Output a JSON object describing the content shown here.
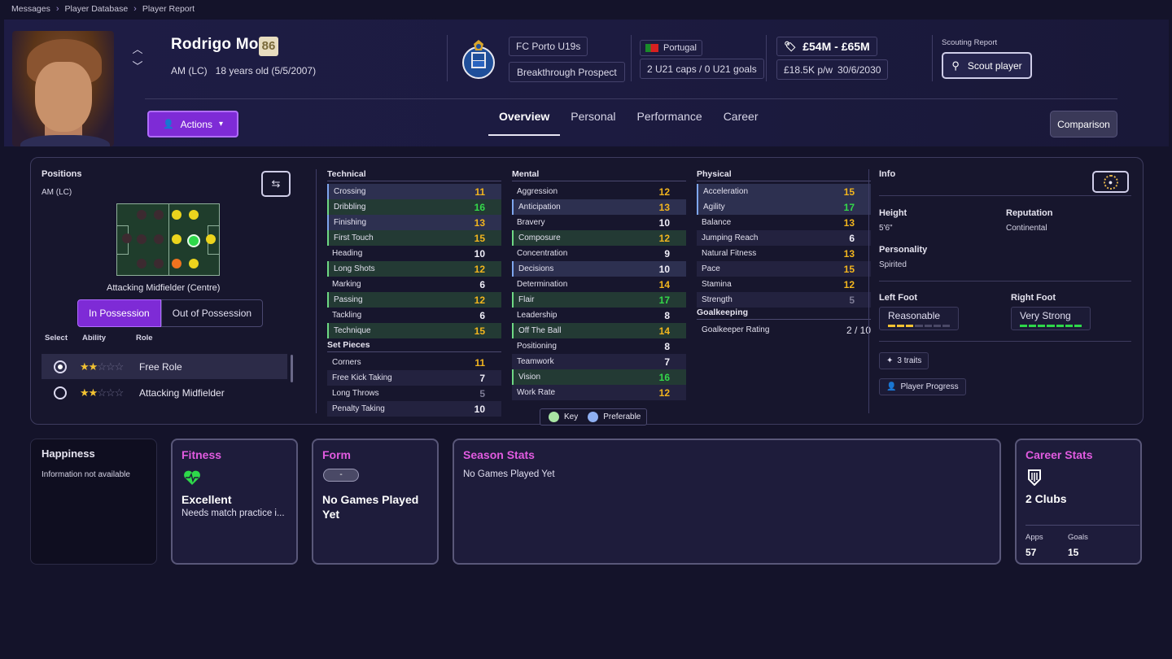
{
  "breadcrumb": [
    "Messages",
    "Player Database",
    "Player Report"
  ],
  "player": {
    "name": "Rodrigo Mora",
    "rating": "86",
    "position": "AM (LC)",
    "age": "18 years old (5/5/2007)",
    "club": "FC Porto U19s",
    "status": "Breakthrough Prospect",
    "nation": "Portugal",
    "caps": "2 U21 caps / 0 U21 goals",
    "value": "£54M - £65M",
    "wage": "£18.5K p/w",
    "contract": "30/6/2030"
  },
  "scouting": {
    "label": "Scouting Report",
    "button": "Scout player"
  },
  "actions_label": "Actions",
  "tabs": [
    "Overview",
    "Personal",
    "Performance",
    "Career"
  ],
  "comparison_label": "Comparison",
  "positions": {
    "title": "Positions",
    "current": "AM (LC)",
    "role_name": "Attacking Midfielder (Centre)",
    "seg_in": "In Possession",
    "seg_out": "Out of Possession",
    "hdr_select": "Select",
    "hdr_ability": "Ability",
    "hdr_role": "Role",
    "roles": [
      {
        "name": "Free Role",
        "stars": 2,
        "selected": true
      },
      {
        "name": "Attacking Midfielder",
        "stars": 2,
        "selected": false
      }
    ]
  },
  "technical": {
    "title": "Technical",
    "rows": [
      {
        "name": "Crossing",
        "value": "11",
        "color": "#f2b51e",
        "style": "pref"
      },
      {
        "name": "Dribbling",
        "value": "16",
        "color": "#34d94a",
        "style": "key"
      },
      {
        "name": "Finishing",
        "value": "13",
        "color": "#f2b51e",
        "style": "pref"
      },
      {
        "name": "First Touch",
        "value": "15",
        "color": "#f2b51e",
        "style": "key"
      },
      {
        "name": "Heading",
        "value": "10",
        "color": "#f0eef8",
        "style": ""
      },
      {
        "name": "Long Shots",
        "value": "12",
        "color": "#f2b51e",
        "style": "key"
      },
      {
        "name": "Marking",
        "value": "6",
        "color": "#f0eef8",
        "style": ""
      },
      {
        "name": "Passing",
        "value": "12",
        "color": "#f2b51e",
        "style": "key"
      },
      {
        "name": "Tackling",
        "value": "6",
        "color": "#f0eef8",
        "style": ""
      },
      {
        "name": "Technique",
        "value": "15",
        "color": "#f2b51e",
        "style": "key"
      }
    ]
  },
  "set_pieces": {
    "title": "Set Pieces",
    "rows": [
      {
        "name": "Corners",
        "value": "11",
        "color": "#f2b51e",
        "style": ""
      },
      {
        "name": "Free Kick Taking",
        "value": "7",
        "color": "#f0eef8",
        "style": "hl"
      },
      {
        "name": "Long Throws",
        "value": "5",
        "color": "#7e7c96",
        "style": ""
      },
      {
        "name": "Penalty Taking",
        "value": "10",
        "color": "#f0eef8",
        "style": "hl"
      }
    ]
  },
  "mental": {
    "title": "Mental",
    "rows": [
      {
        "name": "Aggression",
        "value": "12",
        "color": "#f2b51e",
        "style": ""
      },
      {
        "name": "Anticipation",
        "value": "13",
        "color": "#f2b51e",
        "style": "pref"
      },
      {
        "name": "Bravery",
        "value": "10",
        "color": "#f0eef8",
        "style": ""
      },
      {
        "name": "Composure",
        "value": "12",
        "color": "#f2b51e",
        "style": "key"
      },
      {
        "name": "Concentration",
        "value": "9",
        "color": "#f0eef8",
        "style": ""
      },
      {
        "name": "Decisions",
        "value": "10",
        "color": "#f0eef8",
        "style": "pref"
      },
      {
        "name": "Determination",
        "value": "14",
        "color": "#f2b51e",
        "style": ""
      },
      {
        "name": "Flair",
        "value": "17",
        "color": "#34d94a",
        "style": "key"
      },
      {
        "name": "Leadership",
        "value": "8",
        "color": "#f0eef8",
        "style": ""
      },
      {
        "name": "Off The Ball",
        "value": "14",
        "color": "#f2b51e",
        "style": "key"
      },
      {
        "name": "Positioning",
        "value": "8",
        "color": "#f0eef8",
        "style": ""
      },
      {
        "name": "Teamwork",
        "value": "7",
        "color": "#f0eef8",
        "style": "hl"
      },
      {
        "name": "Vision",
        "value": "16",
        "color": "#34d94a",
        "style": "key"
      },
      {
        "name": "Work Rate",
        "value": "12",
        "color": "#f2b51e",
        "style": "hl"
      }
    ]
  },
  "physical": {
    "title": "Physical",
    "rows": [
      {
        "name": "Acceleration",
        "value": "15",
        "color": "#f2b51e",
        "style": "pref"
      },
      {
        "name": "Agility",
        "value": "17",
        "color": "#34d94a",
        "style": "pref"
      },
      {
        "name": "Balance",
        "value": "13",
        "color": "#f2b51e",
        "style": ""
      },
      {
        "name": "Jumping Reach",
        "value": "6",
        "color": "#f0eef8",
        "style": "hl"
      },
      {
        "name": "Natural Fitness",
        "value": "13",
        "color": "#f2b51e",
        "style": ""
      },
      {
        "name": "Pace",
        "value": "15",
        "color": "#f2b51e",
        "style": "hl"
      },
      {
        "name": "Stamina",
        "value": "12",
        "color": "#f2b51e",
        "style": ""
      },
      {
        "name": "Strength",
        "value": "5",
        "color": "#7e7c96",
        "style": "hl"
      }
    ]
  },
  "goalkeeping": {
    "title": "Goalkeeping",
    "label": "Goalkeeper Rating",
    "value": "2 / 10"
  },
  "legend": {
    "key": "Key",
    "preferable": "Preferable"
  },
  "info": {
    "title": "Info",
    "height_label": "Height",
    "height": "5'6\"",
    "reputation_label": "Reputation",
    "reputation": "Continental",
    "personality_label": "Personality",
    "personality": "Spirited",
    "left_foot_label": "Left Foot",
    "left_foot": "Reasonable",
    "left_foot_level": 3,
    "right_foot_label": "Right Foot",
    "right_foot": "Very Strong",
    "right_foot_level": 7,
    "traits": "3 traits",
    "progress": "Player Progress"
  },
  "cards": {
    "happiness_title": "Happiness",
    "happiness_text": "Information not available",
    "fitness_title": "Fitness",
    "fitness_value": "Excellent",
    "fitness_sub": "Needs match practice i...",
    "form_title": "Form",
    "form_badge": "-",
    "form_value": "No Games Played Yet",
    "season_title": "Season Stats",
    "season_text": "No Games Played Yet",
    "career_title": "Career Stats",
    "career_value": "2 Clubs",
    "apps_label": "Apps",
    "apps": "57",
    "goals_label": "Goals",
    "goals": "15"
  },
  "colors": {
    "accent": "#7e2bd6",
    "card_title": "#e15be0",
    "key": "#34d94a",
    "pref": "#7ea6ee",
    "good": "#f2b51e"
  }
}
